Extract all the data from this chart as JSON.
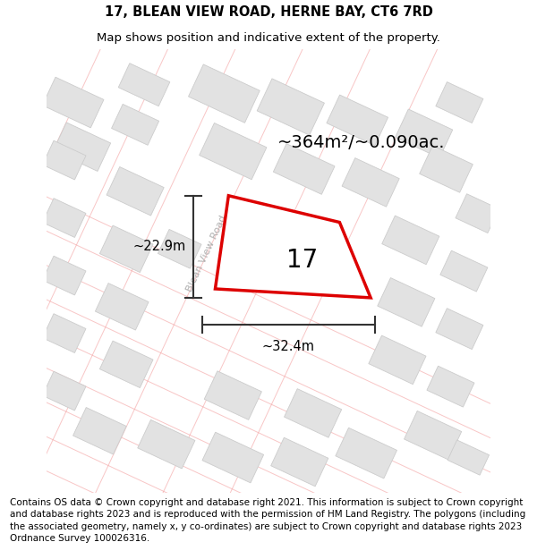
{
  "title_line1": "17, BLEAN VIEW ROAD, HERNE BAY, CT6 7RD",
  "title_line2": "Map shows position and indicative extent of the property.",
  "area_label": "~364m²/~0.090ac.",
  "property_number": "17",
  "width_label": "~32.4m",
  "height_label": "~22.9m",
  "road_label": "Blean View Road",
  "footer_text": "Contains OS data © Crown copyright and database right 2021. This information is subject to Crown copyright and database rights 2023 and is reproduced with the permission of HM Land Registry. The polygons (including the associated geometry, namely x, y co-ordinates) are subject to Crown copyright and database rights 2023 Ordnance Survey 100026316.",
  "bg_color": "#ffffff",
  "map_bg": "#f8f8f8",
  "building_fill": "#e2e2e2",
  "building_edge": "#cccccc",
  "road_line_color": "#f4a0a0",
  "highlight_color": "#dd0000",
  "dim_line_color": "#333333",
  "title_fontsize": 10.5,
  "subtitle_fontsize": 9.5,
  "area_fontsize": 14,
  "footer_fontsize": 7.5,
  "road_label_fontsize": 8,
  "number_fontsize": 20,
  "dim_fontsize": 10.5
}
